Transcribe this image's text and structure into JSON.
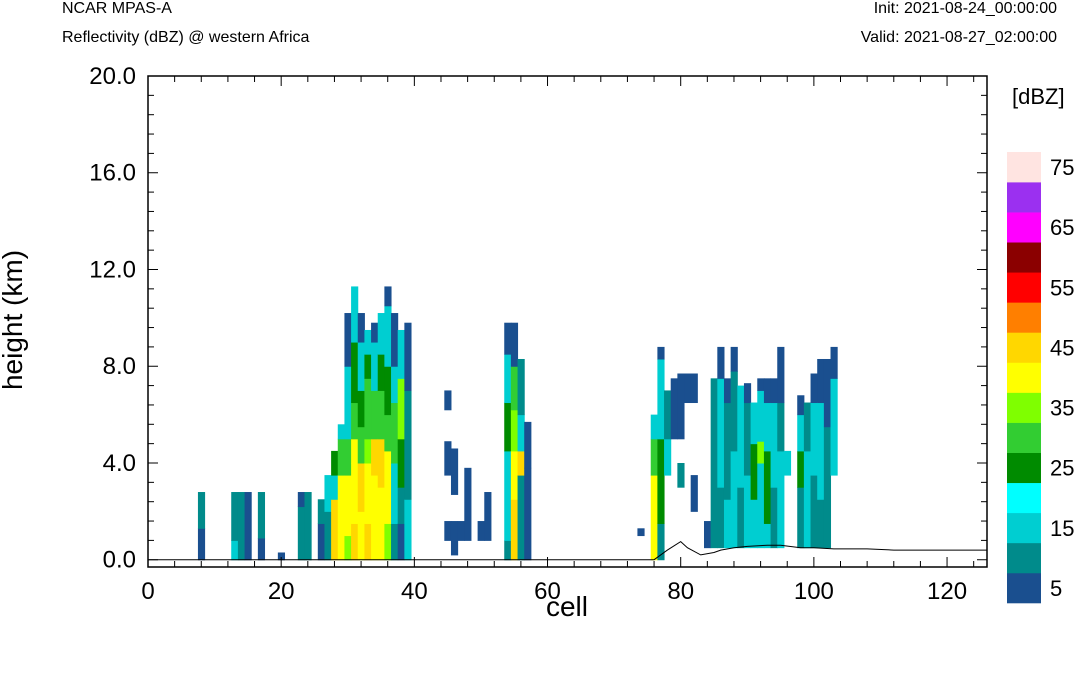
{
  "header": {
    "left_title": "NCAR MPAS-A",
    "left_subtitle": "Reflectivity (dBZ) @ western Africa",
    "right_title": "Init: 2021-08-24_00:00:00",
    "right_subtitle": "Valid: 2021-08-27_02:00:00"
  },
  "chart_data": {
    "type": "heatmap",
    "title": "Reflectivity (dBZ) @ western Africa",
    "xlabel": "cell",
    "ylabel": "height (km)",
    "xlim": [
      0,
      126
    ],
    "ylim": [
      -0.3,
      20.0
    ],
    "x_ticks": [
      0,
      20,
      40,
      60,
      80,
      100,
      120
    ],
    "x_tick_labels": [
      "0",
      "20",
      "40",
      "60",
      "80",
      "100",
      "120"
    ],
    "y_ticks": [
      0,
      4,
      8,
      12,
      16,
      20
    ],
    "y_tick_labels": [
      "0.0",
      "4.0",
      "8.0",
      "12.0",
      "16.0",
      "20.0"
    ],
    "colorbar": {
      "title": "[dBZ]",
      "levels": [
        5,
        10,
        15,
        20,
        25,
        30,
        35,
        40,
        45,
        50,
        55,
        60,
        65,
        70,
        75
      ],
      "labels": [
        "5",
        "15",
        "25",
        "35",
        "45",
        "55",
        "65",
        "75"
      ],
      "colors": [
        "#1a4f8f",
        "#008b8b",
        "#00ced1",
        "#00ffff",
        "#008b00",
        "#32cd32",
        "#7fff00",
        "#ffff00",
        "#ffd700",
        "#ff7f00",
        "#ff0000",
        "#8b0000",
        "#ff00ff",
        "#9b30f0",
        "#ffe4e1"
      ]
    },
    "cells": [
      [
        8,
        0,
        1.3,
        5
      ],
      [
        8,
        1.3,
        2.8,
        10
      ],
      [
        13,
        0,
        0.8,
        15
      ],
      [
        13,
        0.8,
        2.8,
        10
      ],
      [
        14,
        0,
        2.8,
        10
      ],
      [
        15,
        0,
        2.8,
        5
      ],
      [
        17,
        0,
        0.9,
        5
      ],
      [
        17,
        0.9,
        2.8,
        10
      ],
      [
        20,
        0,
        0.3,
        5
      ],
      [
        23,
        0,
        2.2,
        10
      ],
      [
        23,
        2.2,
        2.8,
        5
      ],
      [
        24,
        0,
        2.8,
        10
      ],
      [
        26,
        0,
        1.5,
        5
      ],
      [
        26,
        1.5,
        2.5,
        10
      ],
      [
        27,
        0,
        2.0,
        10
      ],
      [
        27,
        2.0,
        3.5,
        15
      ],
      [
        28,
        0,
        2.5,
        45
      ],
      [
        28,
        2.5,
        3.5,
        15
      ],
      [
        28,
        3.5,
        4.5,
        25
      ],
      [
        29,
        0,
        3.5,
        40
      ],
      [
        29,
        3.5,
        5.0,
        30
      ],
      [
        29,
        5.0,
        5.6,
        15
      ],
      [
        30,
        0,
        1.0,
        35
      ],
      [
        30,
        1.0,
        3.5,
        40
      ],
      [
        30,
        3.5,
        5.0,
        30
      ],
      [
        30,
        5.0,
        8.0,
        15
      ],
      [
        30,
        8.0,
        10.2,
        5
      ],
      [
        31,
        0,
        1.5,
        45
      ],
      [
        31,
        1.5,
        4.0,
        40
      ],
      [
        31,
        4.0,
        5.0,
        40
      ],
      [
        31,
        5.0,
        6.5,
        30
      ],
      [
        31,
        6.5,
        9.0,
        25
      ],
      [
        31,
        9.0,
        11.3,
        15
      ],
      [
        32,
        0,
        2.0,
        40
      ],
      [
        32,
        2.0,
        4.0,
        45
      ],
      [
        32,
        4.0,
        5.5,
        30
      ],
      [
        32,
        5.5,
        7.0,
        25
      ],
      [
        32,
        7.0,
        9.0,
        15
      ],
      [
        32,
        9.0,
        10.2,
        5
      ],
      [
        33,
        0,
        1.5,
        45
      ],
      [
        33,
        1.5,
        4.0,
        40
      ],
      [
        33,
        4.0,
        5.0,
        35
      ],
      [
        33,
        5.0,
        7.5,
        30
      ],
      [
        33,
        7.5,
        8.5,
        25
      ],
      [
        33,
        8.5,
        9.5,
        15
      ],
      [
        34,
        0,
        3.5,
        40
      ],
      [
        34,
        3.5,
        5.0,
        45
      ],
      [
        34,
        5.0,
        7.0,
        30
      ],
      [
        34,
        7.0,
        9.0,
        15
      ],
      [
        34,
        9.0,
        9.8,
        5
      ],
      [
        35,
        0,
        1.0,
        40
      ],
      [
        35,
        1.0,
        3.0,
        40
      ],
      [
        35,
        3.0,
        5.0,
        45
      ],
      [
        35,
        5.0,
        7.0,
        30
      ],
      [
        35,
        7.0,
        8.5,
        25
      ],
      [
        35,
        8.5,
        10.2,
        15
      ],
      [
        36,
        0,
        1.5,
        35
      ],
      [
        36,
        1.5,
        4.5,
        40
      ],
      [
        36,
        4.5,
        6.0,
        30
      ],
      [
        36,
        6.0,
        8.0,
        25
      ],
      [
        36,
        8.0,
        10.5,
        15
      ],
      [
        36,
        10.5,
        11.3,
        5
      ],
      [
        37,
        0,
        1.5,
        10
      ],
      [
        37,
        1.5,
        4.0,
        15
      ],
      [
        37,
        4.0,
        6.5,
        30
      ],
      [
        37,
        6.5,
        8.0,
        15
      ],
      [
        37,
        8.0,
        10.2,
        5
      ],
      [
        38,
        0,
        1.5,
        5
      ],
      [
        38,
        1.5,
        3.0,
        10
      ],
      [
        38,
        3.0,
        5.0,
        25
      ],
      [
        38,
        5.0,
        7.5,
        35
      ],
      [
        38,
        7.5,
        9.5,
        15
      ],
      [
        39,
        0,
        2.5,
        15
      ],
      [
        39,
        2.5,
        7.0,
        10
      ],
      [
        39,
        7.0,
        9.8,
        5
      ],
      [
        45,
        0.8,
        1.6,
        5
      ],
      [
        45,
        3.5,
        4.9,
        5
      ],
      [
        45,
        6.2,
        7.0,
        5
      ],
      [
        46,
        0.2,
        1.6,
        5
      ],
      [
        46,
        2.7,
        4.6,
        5
      ],
      [
        47,
        0.8,
        1.6,
        5
      ],
      [
        48,
        0.8,
        3.8,
        5
      ],
      [
        50,
        0.8,
        1.6,
        5
      ],
      [
        51,
        0.8,
        2.8,
        5
      ],
      [
        54,
        0,
        0.8,
        10
      ],
      [
        54,
        0.8,
        4.5,
        15
      ],
      [
        54,
        4.5,
        6.5,
        25
      ],
      [
        54,
        6.5,
        8.5,
        15
      ],
      [
        54,
        8.5,
        9.8,
        5
      ],
      [
        55,
        0,
        2.5,
        45
      ],
      [
        55,
        2.5,
        4.5,
        40
      ],
      [
        55,
        4.5,
        6.2,
        35
      ],
      [
        55,
        6.2,
        8.0,
        30
      ],
      [
        55,
        8.0,
        9.8,
        5
      ],
      [
        56,
        0,
        3.5,
        10
      ],
      [
        56,
        3.5,
        4.5,
        45
      ],
      [
        56,
        4.5,
        6.0,
        15
      ],
      [
        56,
        6.0,
        8.3,
        10
      ],
      [
        57,
        0,
        3.8,
        5
      ],
      [
        57,
        3.8,
        5.7,
        5
      ],
      [
        74,
        1.0,
        1.3,
        5
      ],
      [
        76,
        0,
        3.5,
        40
      ],
      [
        76,
        3.5,
        5.0,
        30
      ],
      [
        76,
        5.0,
        6.0,
        15
      ],
      [
        77,
        0,
        1.5,
        10
      ],
      [
        77,
        1.5,
        5.0,
        25
      ],
      [
        77,
        5.0,
        8.3,
        15
      ],
      [
        77,
        8.3,
        8.8,
        5
      ],
      [
        78,
        3.5,
        5.0,
        15
      ],
      [
        78,
        5.0,
        7.0,
        10
      ],
      [
        79,
        5.0,
        7.5,
        5
      ],
      [
        80,
        3.0,
        4.0,
        10
      ],
      [
        80,
        5.0,
        7.7,
        5
      ],
      [
        81,
        6.5,
        7.7,
        5
      ],
      [
        82,
        2.0,
        3.5,
        5
      ],
      [
        82,
        6.5,
        7.7,
        5
      ],
      [
        84,
        0.5,
        1.6,
        5
      ],
      [
        85,
        0.5,
        7.5,
        10
      ],
      [
        86,
        0.5,
        3.0,
        10
      ],
      [
        86,
        3.0,
        7.5,
        15
      ],
      [
        86,
        7.5,
        8.8,
        5
      ],
      [
        87,
        0.5,
        2.5,
        15
      ],
      [
        87,
        2.5,
        6.5,
        10
      ],
      [
        87,
        6.5,
        7.5,
        5
      ],
      [
        88,
        0.5,
        4.5,
        15
      ],
      [
        88,
        4.5,
        7.8,
        10
      ],
      [
        88,
        7.8,
        8.8,
        5
      ],
      [
        89,
        0.5,
        3.0,
        10
      ],
      [
        89,
        3.0,
        7.2,
        15
      ],
      [
        90,
        0.5,
        3.5,
        15
      ],
      [
        90,
        3.5,
        6.5,
        10
      ],
      [
        90,
        6.5,
        7.3,
        5
      ],
      [
        91,
        0.5,
        2.5,
        15
      ],
      [
        91,
        2.5,
        4.8,
        25
      ],
      [
        91,
        4.8,
        6.5,
        15
      ],
      [
        92,
        0.5,
        4.0,
        15
      ],
      [
        92,
        4.0,
        4.9,
        35
      ],
      [
        92,
        4.9,
        7.0,
        15
      ],
      [
        92,
        7.0,
        7.5,
        5
      ],
      [
        93,
        0.5,
        1.5,
        15
      ],
      [
        93,
        1.5,
        4.5,
        25
      ],
      [
        93,
        4.5,
        6.5,
        15
      ],
      [
        93,
        6.5,
        7.5,
        5
      ],
      [
        94,
        0.5,
        3.0,
        10
      ],
      [
        94,
        3.0,
        6.5,
        15
      ],
      [
        94,
        6.5,
        7.5,
        5
      ],
      [
        95,
        0.5,
        4.5,
        15
      ],
      [
        95,
        4.5,
        6.5,
        10
      ],
      [
        95,
        6.5,
        8.8,
        5
      ],
      [
        96,
        3.5,
        4.5,
        15
      ],
      [
        98,
        0.5,
        3.0,
        10
      ],
      [
        98,
        3.0,
        4.5,
        25
      ],
      [
        98,
        4.5,
        6.0,
        15
      ],
      [
        98,
        6.0,
        6.8,
        5
      ],
      [
        99,
        0.5,
        4.5,
        15
      ],
      [
        99,
        4.5,
        6.5,
        10
      ],
      [
        100,
        0.5,
        3.5,
        10
      ],
      [
        100,
        3.5,
        6.5,
        15
      ],
      [
        100,
        6.5,
        7.7,
        5
      ],
      [
        101,
        0.5,
        2.5,
        10
      ],
      [
        101,
        2.5,
        6.5,
        15
      ],
      [
        101,
        6.5,
        8.3,
        5
      ],
      [
        102,
        0.5,
        2.5,
        10
      ],
      [
        102,
        2.5,
        5.5,
        10
      ],
      [
        102,
        5.5,
        8.3,
        5
      ],
      [
        103,
        3.5,
        7.5,
        15
      ],
      [
        103,
        7.5,
        8.8,
        5
      ]
    ],
    "terrain": [
      [
        0,
        0
      ],
      [
        76,
        0
      ],
      [
        78,
        0.4
      ],
      [
        80,
        0.75
      ],
      [
        81,
        0.5
      ],
      [
        83,
        0.2
      ],
      [
        85,
        0.3
      ],
      [
        86,
        0.4
      ],
      [
        88,
        0.5
      ],
      [
        90,
        0.55
      ],
      [
        93,
        0.6
      ],
      [
        95,
        0.6
      ],
      [
        98,
        0.5
      ],
      [
        100,
        0.5
      ],
      [
        103,
        0.45
      ],
      [
        108,
        0.45
      ],
      [
        112,
        0.4
      ],
      [
        126,
        0.4
      ]
    ]
  }
}
